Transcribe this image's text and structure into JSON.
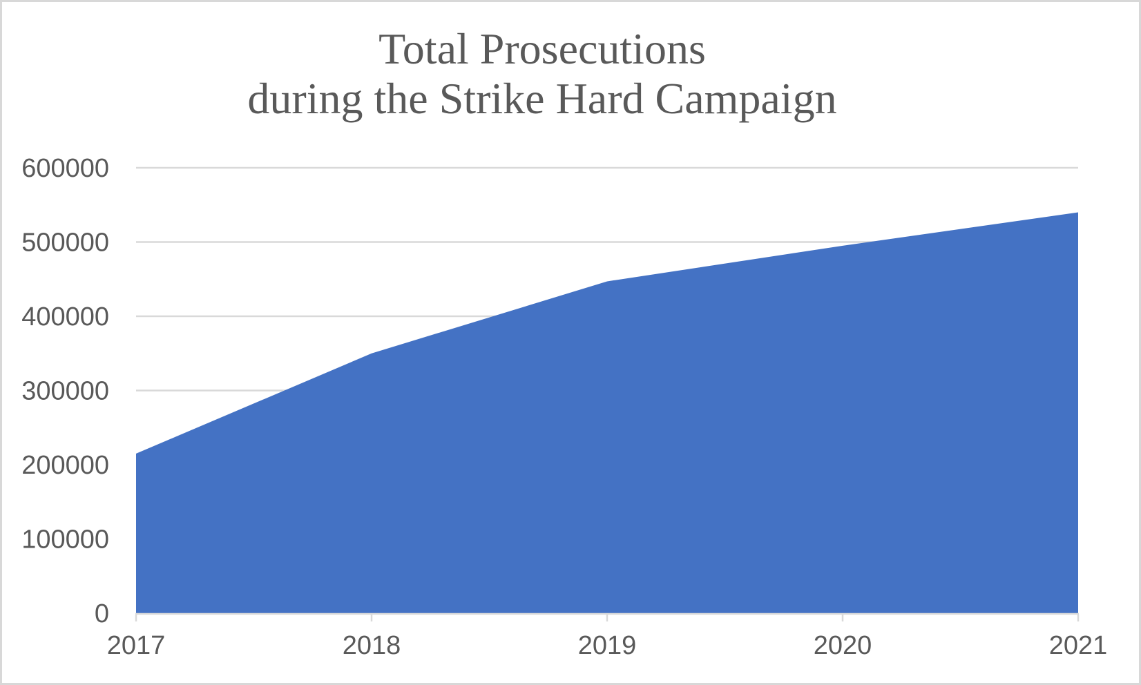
{
  "chart_data": {
    "type": "area",
    "title_lines": [
      "Total Prosecutions",
      "during the Strike Hard Campaign"
    ],
    "categories": [
      "2017",
      "2018",
      "2019",
      "2020",
      "2021"
    ],
    "series": [
      {
        "name": "Total Prosecutions",
        "values": [
          215000,
          350000,
          447000,
          495000,
          540000
        ]
      }
    ],
    "xlabel": "",
    "ylabel": "",
    "ylim": [
      0,
      600000
    ],
    "yticks": [
      0,
      100000,
      200000,
      300000,
      400000,
      500000,
      600000
    ],
    "grid": true,
    "legend": "none",
    "colors": {
      "area_fill": "#4472C4",
      "gridline": "#D9D9D9",
      "axis_line": "#D9D9D9",
      "tick_text": "#595959",
      "title_text": "#595959",
      "frame_border": "#D8D8D8",
      "background": "#FFFFFF"
    }
  }
}
